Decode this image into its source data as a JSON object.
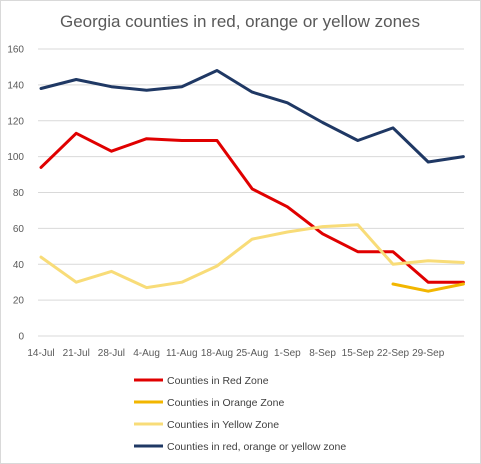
{
  "chart_data": {
    "type": "line",
    "title": "Georgia counties in red, orange or yellow zones",
    "xlabel": "",
    "ylabel": "",
    "ylim": [
      0,
      160
    ],
    "yticks": [
      0,
      20,
      40,
      60,
      80,
      100,
      120,
      140,
      160
    ],
    "grid": true,
    "legend_position": "bottom",
    "categories": [
      "14-Jul",
      "21-Jul",
      "28-Jul",
      "4-Aug",
      "11-Aug",
      "18-Aug",
      "25-Aug",
      "1-Sep",
      "8-Sep",
      "15-Sep",
      "22-Sep",
      "29-Sep",
      ""
    ],
    "series": [
      {
        "name": "Counties in Red Zone",
        "color": "#e00000",
        "values": [
          94,
          113,
          103,
          110,
          109,
          109,
          82,
          72,
          57,
          47,
          47,
          30,
          30
        ]
      },
      {
        "name": "Counties in Orange Zone",
        "color": "#f2b600",
        "values": [
          null,
          null,
          null,
          null,
          null,
          null,
          null,
          null,
          null,
          null,
          29,
          25,
          29
        ]
      },
      {
        "name": "Counties in Yellow Zone",
        "color": "#f8dc78",
        "values": [
          44,
          30,
          36,
          27,
          30,
          39,
          54,
          58,
          61,
          62,
          40,
          42,
          41
        ]
      },
      {
        "name": "Counties in red, orange or yellow zone",
        "color": "#1f3864",
        "values": [
          138,
          143,
          139,
          137,
          139,
          148,
          136,
          130,
          119,
          109,
          116,
          97,
          100
        ]
      }
    ]
  }
}
